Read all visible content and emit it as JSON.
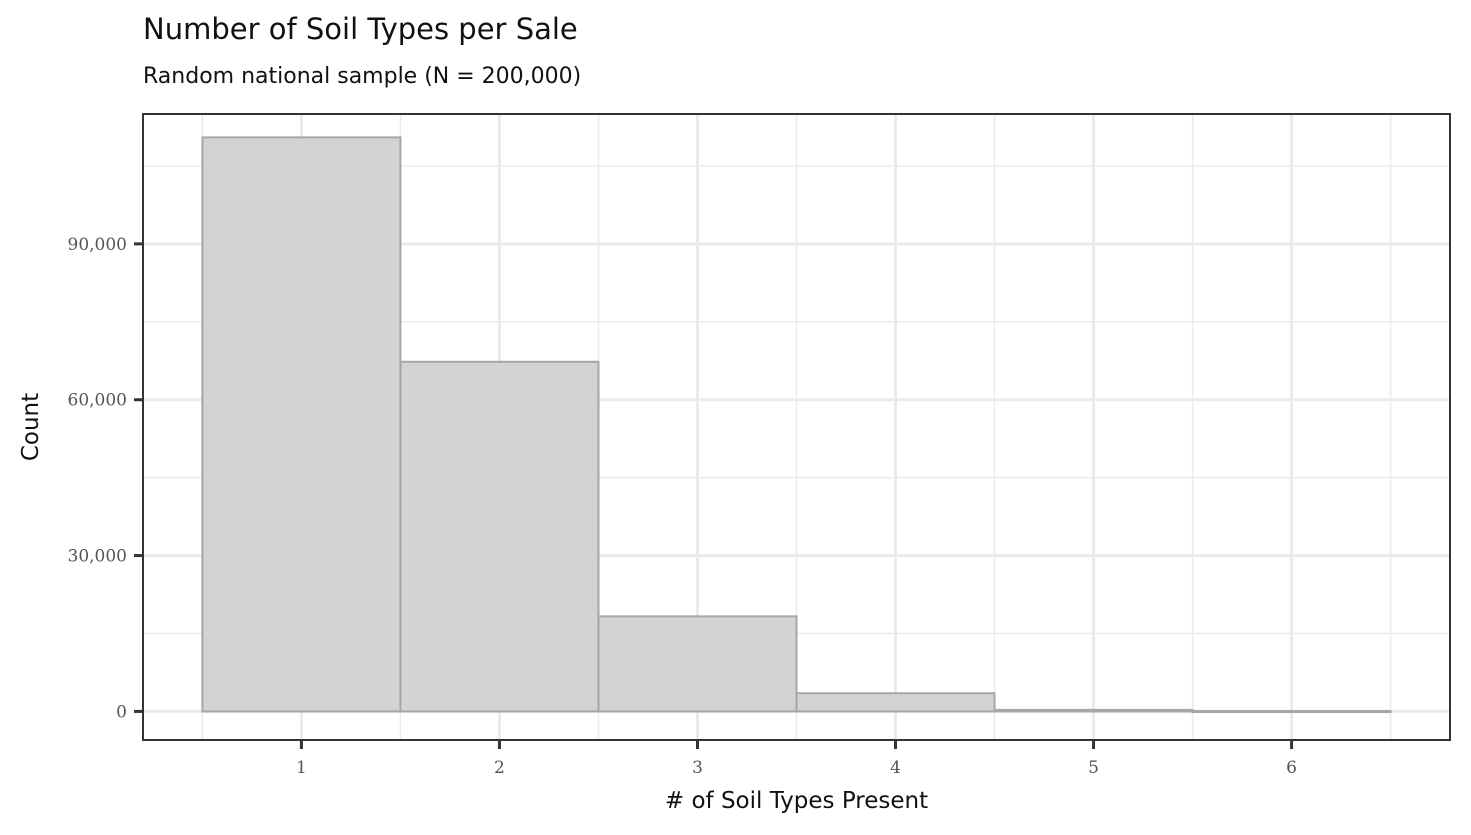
{
  "chart_data": {
    "type": "bar",
    "title": "Number of Soil Types per Sale",
    "subtitle": "Random national sample (N = 200,000)",
    "xlabel": "# of Soil Types Present",
    "ylabel": "Count",
    "categories": [
      "1",
      "2",
      "3",
      "4",
      "5",
      "6"
    ],
    "x": [
      1,
      2,
      3,
      4,
      5,
      6
    ],
    "values": [
      110500,
      67300,
      18300,
      3500,
      300,
      70
    ],
    "xlim": [
      0.2,
      6.8
    ],
    "ylim": [
      -5500,
      115000
    ],
    "yticks": [
      0,
      30000,
      60000,
      90000
    ],
    "ytick_labels": [
      "0",
      "30,000",
      "60,000",
      "90,000"
    ],
    "xticks": [
      1,
      2,
      3,
      4,
      5,
      6
    ],
    "xtick_labels": [
      "1",
      "2",
      "3",
      "4",
      "5",
      "6"
    ],
    "grid": true,
    "colors": {
      "fill": "#d3d3d3",
      "outline": "#a6a6a6",
      "panel_border": "#333333",
      "grid": "#ebebeb"
    }
  }
}
